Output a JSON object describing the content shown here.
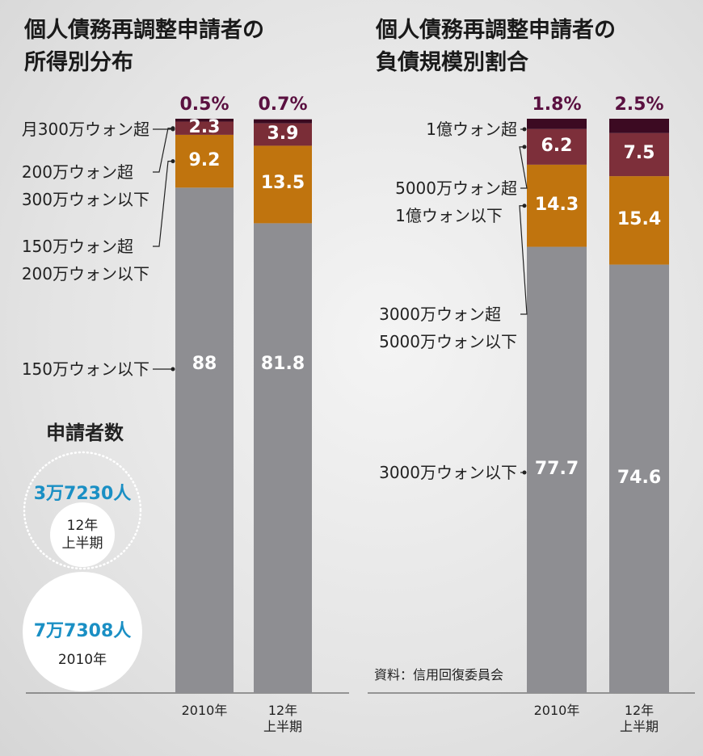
{
  "chart_data": [
    {
      "type": "stacked-bar",
      "title": "個人債務再調整申請者の\n所得別分布",
      "categories": [
        "2010年",
        "12年\n上半期"
      ],
      "ylim": [
        0,
        100
      ],
      "series": [
        {
          "name": "150万ウォン以下",
          "color": "#8e8e92",
          "values": [
            88,
            81.8
          ]
        },
        {
          "name": "150万ウォン超\n200万ウォン以下",
          "color": "#c0740e",
          "values": [
            9.2,
            13.5
          ]
        },
        {
          "name": "200万ウォン超\n300万ウォン以下",
          "color": "#7a2d37",
          "values": [
            2.3,
            3.9
          ]
        },
        {
          "name": "月300万ウォン超",
          "color": "#3a0a20",
          "values": [
            0.5,
            0.7
          ],
          "value_labels": [
            "0.5%",
            "0.7%"
          ]
        }
      ]
    },
    {
      "type": "stacked-bar",
      "title": "個人債務再調整申請者の\n負債規模別割合",
      "categories": [
        "2010年",
        "12年\n上半期"
      ],
      "ylim": [
        0,
        100
      ],
      "source": "資料：信用回復委員会",
      "series": [
        {
          "name": "3000万ウォン以下",
          "color": "#8e8e92",
          "values": [
            77.7,
            74.6
          ]
        },
        {
          "name": "3000万ウォン超\n5000万ウォン以下",
          "color": "#c0740e",
          "values": [
            14.3,
            15.4
          ]
        },
        {
          "name": "5000万ウォン超\n1億ウォン以下",
          "color": "#7d2f3a",
          "values": [
            6.2,
            7.5
          ]
        },
        {
          "name": "1億ウォン超",
          "color": "#3c0a22",
          "values": [
            1.8,
            2.5
          ],
          "value_labels": [
            "1.8%",
            "2.5%"
          ]
        }
      ]
    }
  ],
  "applicants": {
    "title": "申請者数",
    "items": [
      {
        "count": "3万7230人",
        "period": "12年\n上半期"
      },
      {
        "count": "7万7308人",
        "period": "2010年"
      }
    ]
  }
}
